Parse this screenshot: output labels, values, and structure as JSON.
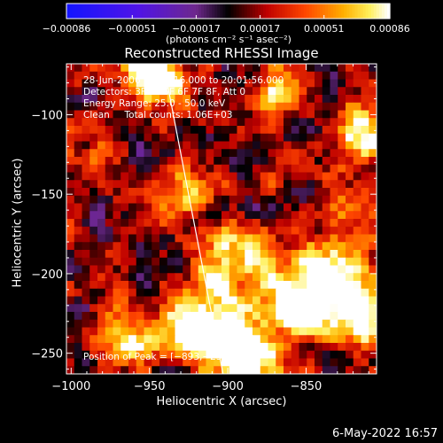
{
  "chart_data": {
    "type": "heatmap",
    "title": "Reconstructed RHESSI Image",
    "xlabel": "Heliocentric X (arcsec)",
    "ylabel": "Heliocentric Y (arcsec)",
    "xlim": [
      -1003,
      -805
    ],
    "ylim": [
      -263,
      -68
    ],
    "x_ticks": [
      -1000,
      -950,
      -900,
      -850
    ],
    "y_ticks": [
      -100,
      -150,
      -200,
      -250
    ],
    "x_tick_labels": [
      "−1000",
      "−950",
      "−900",
      "−850"
    ],
    "y_tick_labels": [
      "−100",
      "−150",
      "−200",
      "−250"
    ],
    "colorbar": {
      "ticks": [
        -0.00086,
        -0.00051,
        -0.00017,
        0.00017,
        0.00051,
        0.00086
      ],
      "tick_labels": [
        "−0.00086",
        "−0.00051",
        "−0.00017",
        "0.00017",
        "0.00051",
        "0.00086"
      ],
      "unit_label": "(photons cm⁻² s⁻¹ asec⁻²)",
      "range": [
        -0.00086,
        0.00086
      ]
    },
    "annotations": [
      "28-Jun-2006 20:01:16.000 to 20:01:56.000",
      "Detectors: 3F 4F 5F 6F 7F 8F, Att 0",
      "Energy Range: 25.0 - 50.0 keV",
      "Clean     Total counts: 1.06E+03"
    ],
    "peak_label": "Position of Peak = [−893,−253]",
    "peak_position": [
      -893,
      -253
    ],
    "limb_line": [
      [
        -941,
        -68
      ],
      [
        -903,
        -263
      ]
    ],
    "bright_regions": [
      {
        "x": -890,
        "y": -255,
        "intensity": 1.0,
        "spread": 14
      },
      {
        "x": -910,
        "y": -240,
        "intensity": 0.7,
        "spread": 12
      },
      {
        "x": -930,
        "y": -235,
        "intensity": 0.6,
        "spread": 14
      },
      {
        "x": -965,
        "y": -240,
        "intensity": 0.55,
        "spread": 12
      },
      {
        "x": -840,
        "y": -205,
        "intensity": 0.9,
        "spread": 18
      },
      {
        "x": -815,
        "y": -225,
        "intensity": 0.75,
        "spread": 14
      },
      {
        "x": -860,
        "y": -225,
        "intensity": 0.6,
        "spread": 14
      },
      {
        "x": -905,
        "y": -210,
        "intensity": 0.55,
        "spread": 16
      },
      {
        "x": -890,
        "y": -185,
        "intensity": 0.45,
        "spread": 14
      },
      {
        "x": -940,
        "y": -80,
        "intensity": 0.85,
        "spread": 10
      },
      {
        "x": -955,
        "y": -72,
        "intensity": 0.6,
        "spread": 10
      },
      {
        "x": -870,
        "y": -85,
        "intensity": 0.5,
        "spread": 12
      },
      {
        "x": -815,
        "y": -110,
        "intensity": 0.75,
        "spread": 12
      },
      {
        "x": -820,
        "y": -160,
        "intensity": 0.5,
        "spread": 12
      },
      {
        "x": -925,
        "y": -150,
        "intensity": 0.4,
        "spread": 14
      },
      {
        "x": -980,
        "y": -125,
        "intensity": 0.35,
        "spread": 10
      }
    ]
  },
  "footer": {
    "date": "6-May-2022 16:57"
  }
}
